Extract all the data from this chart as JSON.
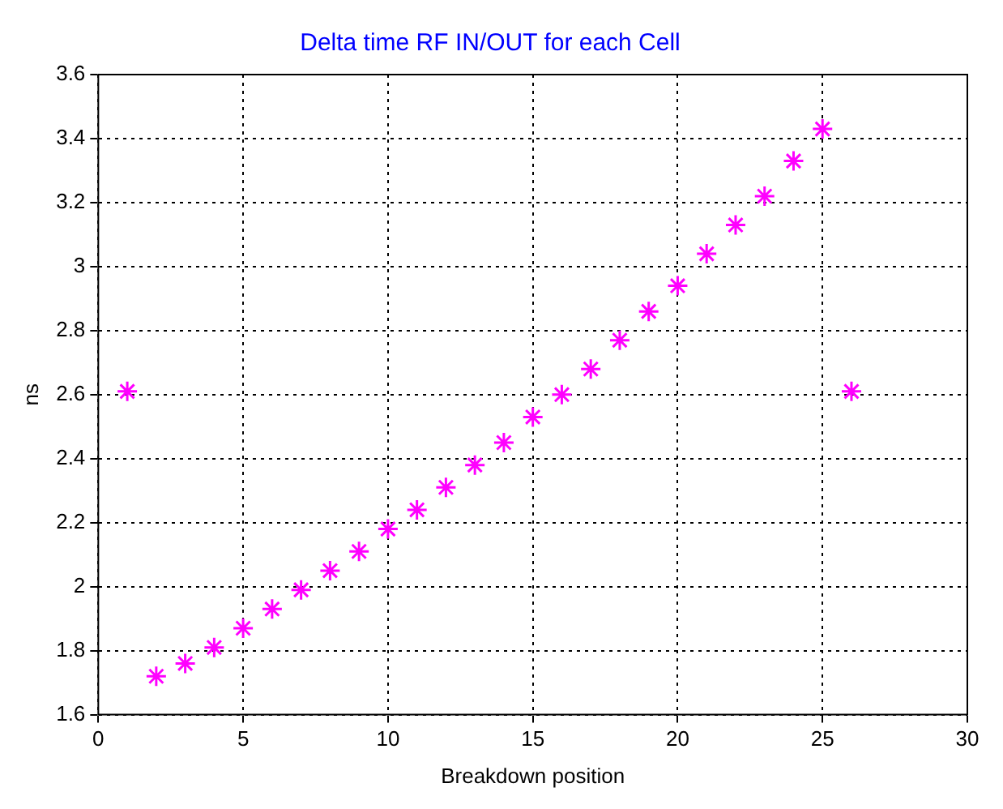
{
  "chart_data": {
    "type": "scatter",
    "title": "Delta time RF IN/OUT for each Cell",
    "xlabel": "Breakdown position",
    "ylabel": "ns",
    "x": [
      1,
      2,
      3,
      4,
      5,
      6,
      7,
      8,
      9,
      10,
      11,
      12,
      13,
      14,
      15,
      16,
      17,
      18,
      19,
      20,
      21,
      22,
      23,
      24,
      25,
      26
    ],
    "series": [
      {
        "color": "#ff00ff",
        "values": [
          2.61,
          1.72,
          1.76,
          1.81,
          1.87,
          1.93,
          1.99,
          2.05,
          2.11,
          2.18,
          2.24,
          2.31,
          2.38,
          2.45,
          2.53,
          2.6,
          2.68,
          2.77,
          2.86,
          2.94,
          3.04,
          3.13,
          3.22,
          3.33,
          3.43,
          2.61
        ]
      }
    ],
    "xlim": [
      0,
      30
    ],
    "xticks": [
      0,
      5,
      10,
      15,
      20,
      25,
      30
    ],
    "ylim": [
      1.6,
      3.6
    ],
    "yticks": [
      1.6,
      1.8,
      2,
      2.2,
      2.4,
      2.6,
      2.8,
      3,
      3.2,
      3.4,
      3.6
    ],
    "grid": true,
    "marker": "cross",
    "legend": false
  }
}
